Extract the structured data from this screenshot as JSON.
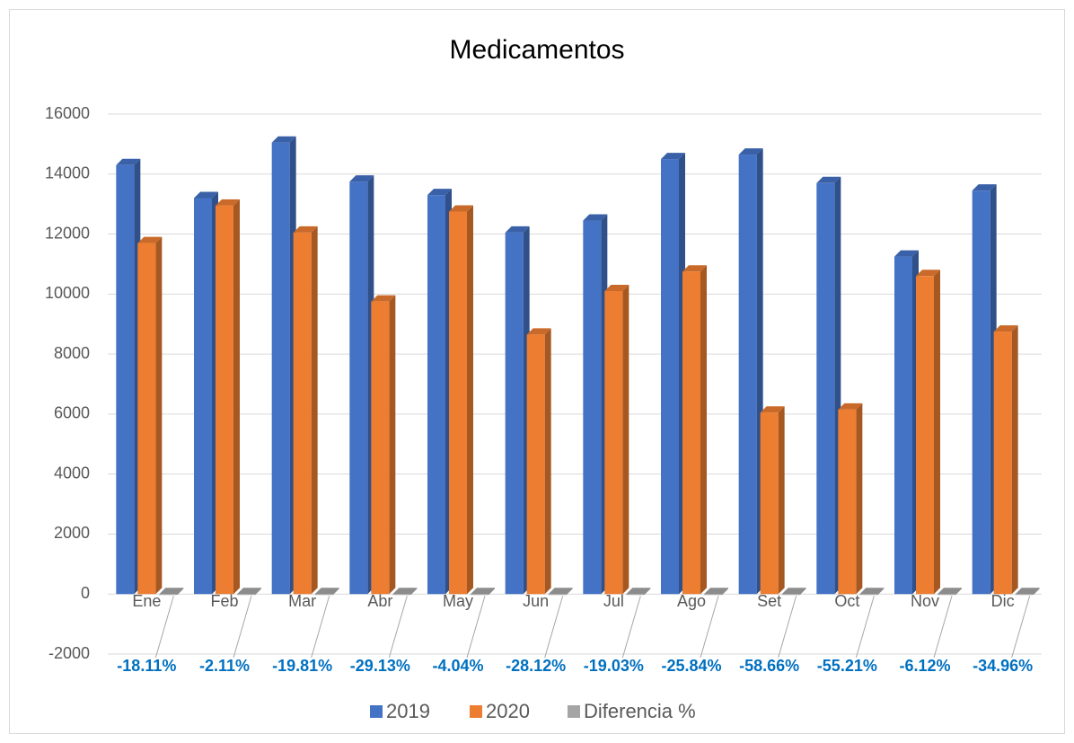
{
  "chart_data": {
    "type": "bar3d",
    "title": "Medicamentos",
    "categories": [
      "Ene",
      "Feb",
      "Mar",
      "Abr",
      "May",
      "Jun",
      "Jul",
      "Ago",
      "Set",
      "Oct",
      "Nov",
      "Dic"
    ],
    "series": [
      {
        "name": "2019",
        "color": "#4472c4",
        "values": [
          14300,
          13200,
          15050,
          13750,
          13300,
          12050,
          12450,
          14500,
          14650,
          13700,
          11250,
          13450
        ]
      },
      {
        "name": "2020",
        "color": "#ed7d31",
        "values": [
          11700,
          12950,
          12050,
          9750,
          12750,
          8650,
          10100,
          10750,
          6050,
          6150,
          10600,
          8750
        ]
      },
      {
        "name": "Diferencia %",
        "color": "#a5a5a5",
        "values": [
          -0.1811,
          -0.0211,
          -0.1981,
          -0.2913,
          -0.0404,
          -0.2812,
          -0.1903,
          -0.2584,
          -0.5866,
          -0.5521,
          -0.0612,
          -0.3496
        ],
        "value_labels": [
          "-18.11%",
          "-2.11%",
          "-19.81%",
          "-29.13%",
          "-4.04%",
          "-28.12%",
          "-19.03%",
          "-25.84%",
          "-58.66%",
          "-55.21%",
          "-6.12%",
          "-34.96%"
        ]
      }
    ],
    "ylim": [
      -2000,
      16000
    ],
    "yticks": [
      -2000,
      0,
      2000,
      4000,
      6000,
      8000,
      10000,
      12000,
      14000,
      16000
    ],
    "grid": true,
    "legend": "bottom"
  }
}
